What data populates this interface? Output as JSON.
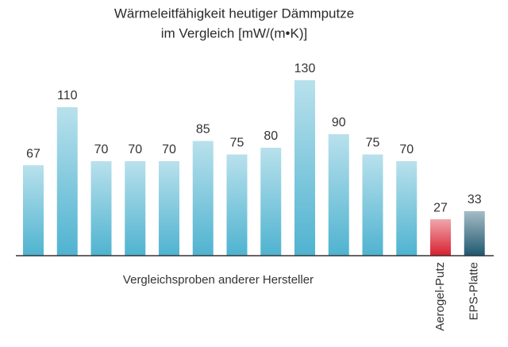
{
  "chart_data": {
    "type": "bar",
    "title": "Wärmeleitfähigkeit heutiger Dämmputze",
    "subtitle": "im Vergleich [mW/(m•K)]",
    "categories": [
      null,
      null,
      null,
      null,
      null,
      null,
      null,
      null,
      null,
      null,
      null,
      null,
      "Aerogel-Putz",
      "EPS-Platte"
    ],
    "values": [
      67,
      110,
      70,
      70,
      70,
      85,
      75,
      80,
      130,
      90,
      75,
      70,
      27,
      33
    ],
    "colors": [
      "#4fb3d0",
      "#4fb3d0",
      "#4fb3d0",
      "#4fb3d0",
      "#4fb3d0",
      "#4fb3d0",
      "#4fb3d0",
      "#4fb3d0",
      "#4fb3d0",
      "#4fb3d0",
      "#4fb3d0",
      "#4fb3d0",
      "#d8202f",
      "#1f5870"
    ],
    "annotation": "Vergleichsproben anderer Hersteller"
  }
}
